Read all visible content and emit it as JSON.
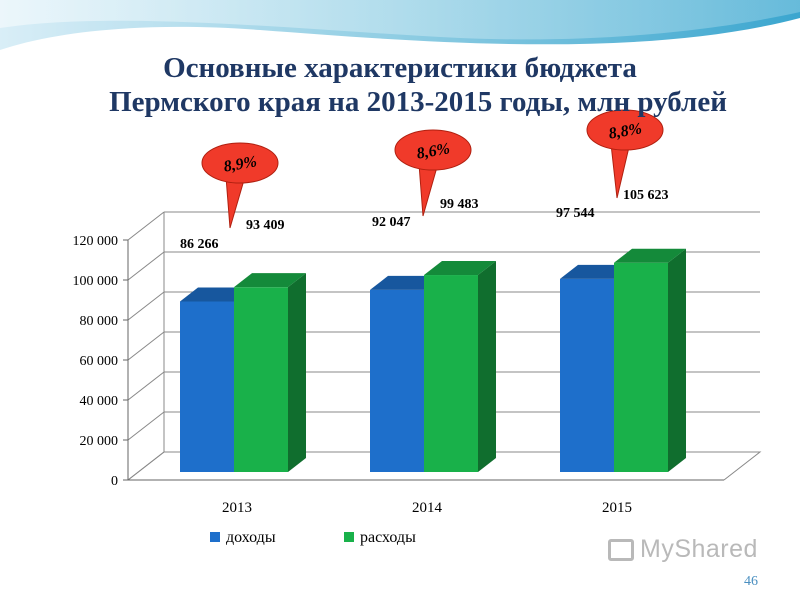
{
  "slide": {
    "title_line1": "Основные характеристики бюджета",
    "title_line2": "Пермского края на 2013-2015 годы, млн рублей",
    "page_number": "46",
    "watermark": "MyShared"
  },
  "colors": {
    "income": "#1e6fcb",
    "expense": "#19b14a",
    "callout": "#f03a2a",
    "title": "#1f3864"
  },
  "chart_data": {
    "type": "bar",
    "categories": [
      "2013",
      "2014",
      "2015"
    ],
    "series": [
      {
        "name": "доходы",
        "values": [
          86266,
          92047,
          97544
        ]
      },
      {
        "name": "расходы",
        "values": [
          93409,
          99483,
          105623
        ]
      }
    ],
    "data_labels": {
      "доходы": [
        "86 266",
        "92 047",
        "97 544"
      ],
      "расходы": [
        "93 409",
        "99 483",
        "105 623"
      ]
    },
    "y_ticks": [
      "0",
      "20 000",
      "40 000",
      "60 000",
      "80 000",
      "100 000",
      "120 000"
    ],
    "ylim": [
      0,
      120000
    ],
    "callouts": [
      "8,9%",
      "8,6%",
      "8,8%"
    ],
    "legend_position": "bottom",
    "grid": true
  }
}
